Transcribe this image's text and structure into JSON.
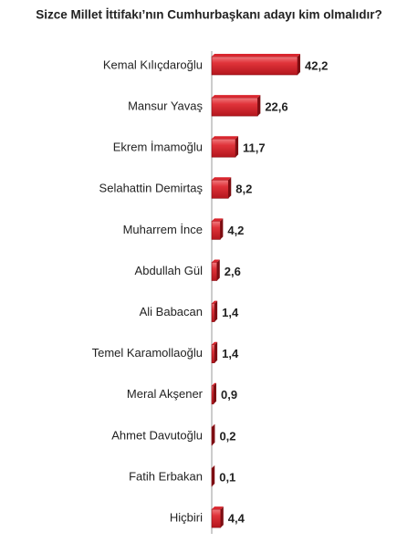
{
  "chart_data": {
    "type": "bar",
    "orientation": "horizontal",
    "title": "Sizce Millet İttifakı’nın Cumhurbaşkanı adayı kim olmalıdır?",
    "categories": [
      "Kemal Kılıçdaroğlu",
      "Mansur Yavaş",
      "Ekrem İmamoğlu",
      "Selahattin Demirtaş",
      "Muharrem İnce",
      "Abdullah Gül",
      "Ali Babacan",
      "Temel Karamollaoğlu",
      "Meral Akşener",
      "Ahmet Davutoğlu",
      "Fatih Erbakan",
      "Hiçbiri"
    ],
    "values": [
      42.2,
      22.6,
      11.7,
      8.2,
      4.2,
      2.6,
      1.4,
      1.4,
      0.9,
      0.2,
      0.1,
      4.4
    ],
    "value_labels": [
      "42,2",
      "22,6",
      "11,7",
      "8,2",
      "4,2",
      "2,6",
      "1,4",
      "1,4",
      "0,9",
      "0,2",
      "0,1",
      "4,4"
    ],
    "color": "#d9262e"
  }
}
